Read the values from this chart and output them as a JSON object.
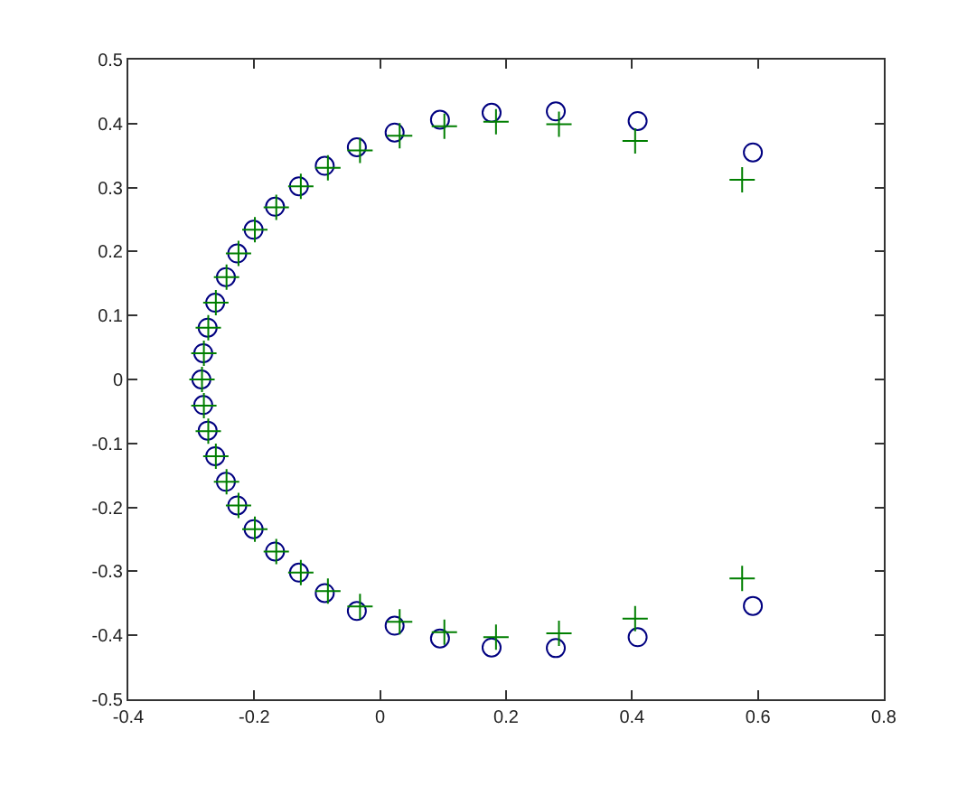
{
  "chart_data": {
    "type": "scatter",
    "xlim": [
      -0.4,
      0.8
    ],
    "xticks": [
      -0.4,
      -0.2,
      0,
      0.2,
      0.4,
      0.6,
      0.8
    ],
    "ylim": [
      -0.5,
      0.5
    ],
    "yticks": [
      -0.5,
      -0.4,
      -0.3,
      -0.2,
      -0.1,
      0,
      0.1,
      0.2,
      0.3,
      0.4,
      0.5
    ],
    "grid": false,
    "series": [
      {
        "marker": "circle",
        "color": "#000080",
        "x": [
          0.592,
          0.409,
          0.279,
          0.177,
          0.095,
          0.023,
          -0.037,
          -0.088,
          -0.129,
          -0.167,
          -0.201,
          -0.227,
          -0.245,
          -0.262,
          -0.274,
          -0.281,
          -0.284,
          -0.281,
          -0.274,
          -0.262,
          -0.245,
          -0.227,
          -0.201,
          -0.167,
          -0.129,
          -0.088,
          -0.037,
          0.023,
          0.095,
          0.177,
          0.279,
          0.409,
          0.592
        ],
        "values": [
          0.355,
          0.404,
          0.419,
          0.417,
          0.406,
          0.386,
          0.363,
          0.334,
          0.302,
          0.27,
          0.234,
          0.197,
          0.16,
          0.12,
          0.081,
          0.041,
          0,
          -0.04,
          -0.08,
          -0.12,
          -0.16,
          -0.197,
          -0.234,
          -0.269,
          -0.302,
          -0.334,
          -0.362,
          -0.385,
          -0.405,
          -0.419,
          -0.42,
          -0.403,
          -0.354
        ]
      },
      {
        "marker": "cross",
        "color": "#007f00",
        "x": [
          0.575,
          0.405,
          0.284,
          0.184,
          0.102,
          0.031,
          -0.032,
          -0.083,
          -0.126,
          -0.165,
          -0.199,
          -0.225,
          -0.244,
          -0.261,
          -0.273,
          -0.28,
          -0.283,
          -0.28,
          -0.273,
          -0.261,
          -0.244,
          -0.225,
          -0.199,
          -0.165,
          -0.126,
          -0.083,
          -0.032,
          0.031,
          0.102,
          0.184,
          0.284,
          0.405,
          0.575
        ],
        "values": [
          0.312,
          0.373,
          0.399,
          0.403,
          0.396,
          0.381,
          0.358,
          0.331,
          0.302,
          0.269,
          0.234,
          0.197,
          0.16,
          0.12,
          0.081,
          0.041,
          0,
          -0.041,
          -0.081,
          -0.12,
          -0.16,
          -0.197,
          -0.234,
          -0.269,
          -0.302,
          -0.331,
          -0.355,
          -0.379,
          -0.395,
          -0.403,
          -0.397,
          -0.374,
          -0.311
        ]
      }
    ]
  }
}
